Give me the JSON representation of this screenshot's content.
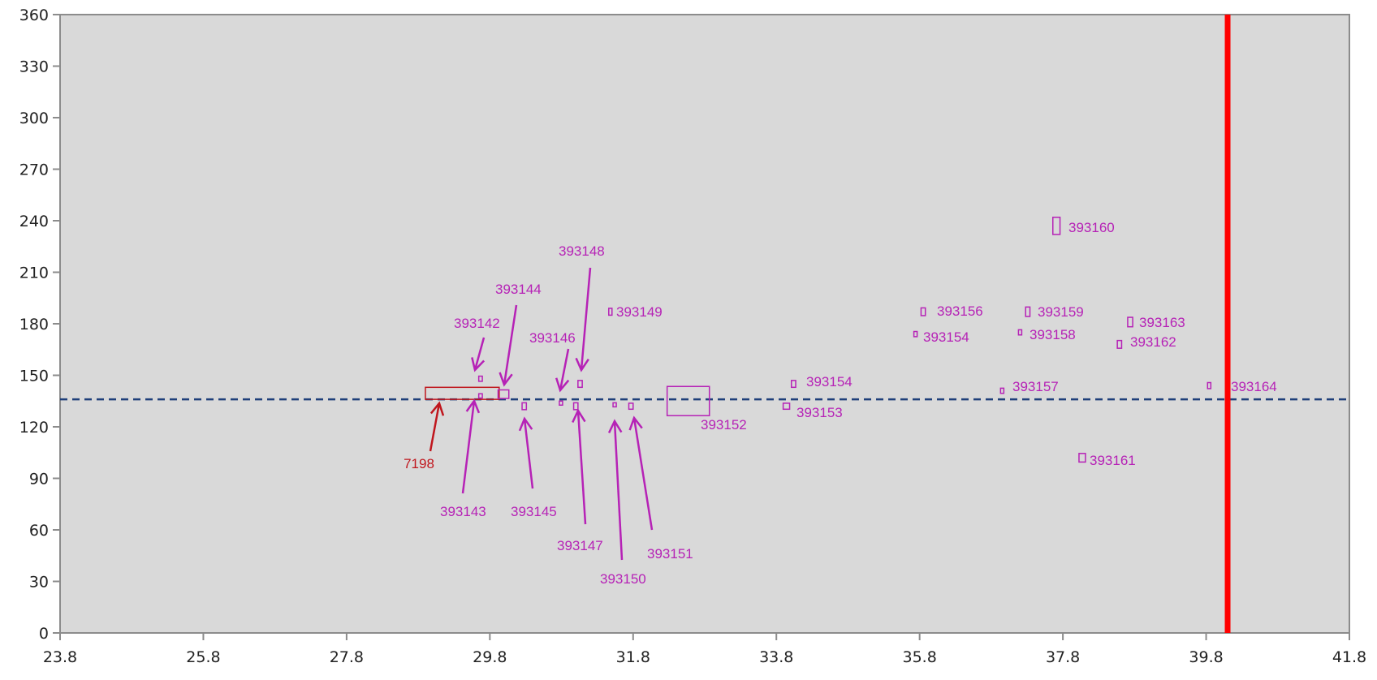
{
  "chart_data": {
    "type": "scatter",
    "title": "",
    "xlabel": "",
    "ylabel": "",
    "xlim": [
      23.8,
      41.8
    ],
    "ylim": [
      0,
      360
    ],
    "x_ticks": [
      "23.8",
      "25.8",
      "27.8",
      "29.8",
      "31.8",
      "33.8",
      "35.8",
      "37.8",
      "39.8",
      "41.8"
    ],
    "y_ticks": [
      "0",
      "30",
      "60",
      "90",
      "120",
      "150",
      "180",
      "210",
      "240",
      "270",
      "300",
      "330",
      "360"
    ],
    "grid": false,
    "legend": "none",
    "reference_line": {
      "y": 136,
      "style": "dashed",
      "color": "#1f3f7a"
    },
    "vertical_marker": {
      "x": 40.1,
      "color": "#ff0000"
    },
    "highlight_box": {
      "label": "7198",
      "x": [
        28.9,
        29.93
      ],
      "y": [
        136,
        143
      ],
      "color": "#c0161d"
    },
    "points": [
      {
        "label": "393142",
        "x": 29.67,
        "y": 148,
        "w": 0.05,
        "h": 3
      },
      {
        "label": "393143",
        "x": 29.67,
        "y": 138,
        "w": 0.05,
        "h": 2.5
      },
      {
        "label": "393144",
        "x": 29.99,
        "y": 139,
        "w": 0.15,
        "h": 5
      },
      {
        "label": "393145",
        "x": 30.28,
        "y": 132,
        "w": 0.06,
        "h": 4
      },
      {
        "label": "393146",
        "x": 30.79,
        "y": 134,
        "w": 0.04,
        "h": 2
      },
      {
        "label": "393147",
        "x": 31.0,
        "y": 132,
        "w": 0.06,
        "h": 4
      },
      {
        "label": "393148",
        "x": 31.06,
        "y": 145,
        "w": 0.06,
        "h": 4
      },
      {
        "label": "393149",
        "x": 31.48,
        "y": 187,
        "w": 0.04,
        "h": 4
      },
      {
        "label": "393150",
        "x": 31.54,
        "y": 133,
        "w": 0.04,
        "h": 2
      },
      {
        "label": "393151",
        "x": 31.77,
        "y": 132,
        "w": 0.06,
        "h": 3.5
      },
      {
        "label": "393152",
        "x": 32.57,
        "y": 135,
        "w": 0.59,
        "h": 17
      },
      {
        "label": "393153",
        "x": 33.94,
        "y": 132,
        "w": 0.09,
        "h": 3.5
      },
      {
        "label": "393154",
        "x": 34.04,
        "y": 145,
        "w": 0.06,
        "h": 4
      },
      {
        "label": "393154",
        "x": 35.74,
        "y": 174,
        "w": 0.04,
        "h": 3
      },
      {
        "label": "393156",
        "x": 35.85,
        "y": 187,
        "w": 0.06,
        "h": 4.5
      },
      {
        "label": "393157",
        "x": 36.95,
        "y": 141,
        "w": 0.04,
        "h": 3
      },
      {
        "label": "393158",
        "x": 37.2,
        "y": 175,
        "w": 0.04,
        "h": 3
      },
      {
        "label": "393159",
        "x": 37.31,
        "y": 187,
        "w": 0.06,
        "h": 5.5
      },
      {
        "label": "393160",
        "x": 37.71,
        "y": 237,
        "w": 0.1,
        "h": 10
      },
      {
        "label": "393161",
        "x": 38.07,
        "y": 102,
        "w": 0.09,
        "h": 5
      },
      {
        "label": "393162",
        "x": 38.59,
        "y": 168,
        "w": 0.06,
        "h": 4.5
      },
      {
        "label": "393163",
        "x": 38.74,
        "y": 181,
        "w": 0.07,
        "h": 5.5
      },
      {
        "label": "393164",
        "x": 39.84,
        "y": 144,
        "w": 0.04,
        "h": 3.5
      }
    ]
  }
}
